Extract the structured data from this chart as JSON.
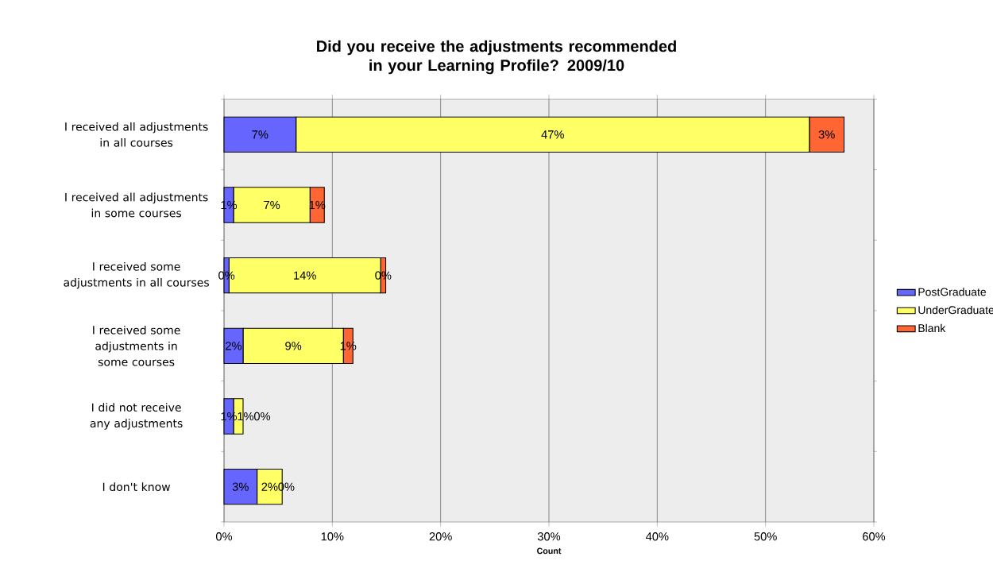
{
  "chart_data": {
    "type": "bar",
    "orientation": "horizontal",
    "stacked": true,
    "title": "Did you receive the adjustments recommended in your Learning Profile? 2009/10",
    "xlabel": "Count",
    "categories": [
      "I received all adjustments in all courses",
      "I received all adjustments in some courses",
      "I received some adjustments in all courses",
      "I received some adjustments in some courses",
      "I did not receive any adjustments",
      "I don't know"
    ],
    "series": [
      {
        "name": "PostGraduate",
        "color": "#6666ff",
        "values": [
          6.65,
          0.88,
          0.46,
          1.76,
          0.88,
          3.05
        ],
        "value_labels": [
          "7%",
          "1%",
          "0%",
          "2%",
          "1%",
          "3%"
        ]
      },
      {
        "name": "UnderGraduate",
        "color": "#ffff66",
        "values": [
          47.4,
          7.06,
          14.0,
          9.26,
          0.88,
          2.32
        ],
        "value_labels": [
          "47%",
          "7%",
          "14%",
          "9%",
          "1%",
          "2%"
        ]
      },
      {
        "name": "Blank",
        "color": "#ff6633",
        "values": [
          3.2,
          1.32,
          0.47,
          0.88,
          0,
          0
        ],
        "value_labels": [
          "3%",
          "1%",
          "0%",
          "1%",
          "0%",
          "0%"
        ]
      }
    ],
    "xlim": [
      0,
      60
    ],
    "xticks": [
      {
        "value": 0,
        "label": "0%"
      },
      {
        "value": 10,
        "label": "10%"
      },
      {
        "value": 20,
        "label": "20%"
      },
      {
        "value": 30,
        "label": "30%"
      },
      {
        "value": 40,
        "label": "40%"
      },
      {
        "value": 50,
        "label": "50%"
      },
      {
        "value": 60,
        "label": "60%"
      }
    ],
    "grid": "x",
    "legend": "right"
  }
}
